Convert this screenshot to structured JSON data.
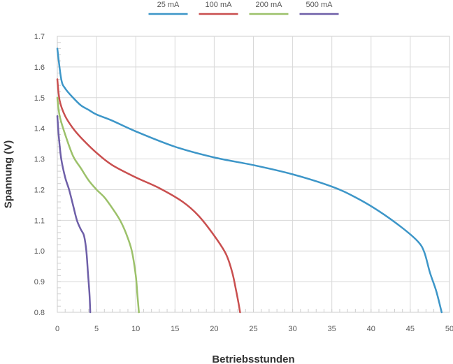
{
  "chart_data": {
    "type": "line",
    "title": "",
    "xlabel": "Betriebsstunden",
    "ylabel": "Spannung (V)",
    "xlim": [
      0,
      50
    ],
    "ylim": [
      0.8,
      1.7
    ],
    "xticks": [
      "0",
      "5",
      "10",
      "15",
      "20",
      "25",
      "30",
      "35",
      "40",
      "45",
      "50"
    ],
    "yticks": [
      "0.8",
      "0.9",
      "1.0",
      "1.1",
      "1.2",
      "1.3",
      "1.4",
      "1.5",
      "1.6",
      "1.7"
    ],
    "grid": true,
    "legend_position": "top-center",
    "series": [
      {
        "name": "25 mA",
        "color": "#3d96c8",
        "x": [
          0,
          0.5,
          1,
          2,
          3,
          4,
          5,
          7,
          10,
          15,
          20,
          25,
          30,
          35,
          38,
          41,
          44,
          46,
          46.8,
          47.5,
          48.3,
          49
        ],
        "y": [
          1.66,
          1.56,
          1.53,
          1.5,
          1.475,
          1.46,
          1.445,
          1.425,
          1.39,
          1.34,
          1.305,
          1.28,
          1.25,
          1.21,
          1.175,
          1.13,
          1.075,
          1.03,
          0.995,
          0.93,
          0.87,
          0.8
        ]
      },
      {
        "name": "100 mA",
        "color": "#c94f4f",
        "x": [
          0,
          0.3,
          1,
          2,
          3,
          5,
          7,
          10,
          13,
          16,
          18,
          20,
          21.5,
          22.3,
          22.8,
          23.1,
          23.3
        ],
        "y": [
          1.56,
          1.49,
          1.44,
          1.4,
          1.37,
          1.32,
          1.28,
          1.24,
          1.205,
          1.16,
          1.115,
          1.05,
          0.99,
          0.93,
          0.87,
          0.83,
          0.8
        ]
      },
      {
        "name": "200 mA",
        "color": "#9cc16a",
        "x": [
          0,
          0.3,
          1,
          2,
          3,
          4,
          5,
          6,
          7,
          8,
          8.8,
          9.5,
          10,
          10.2,
          10.4
        ],
        "y": [
          1.5,
          1.44,
          1.38,
          1.31,
          1.27,
          1.23,
          1.2,
          1.175,
          1.14,
          1.1,
          1.055,
          1.0,
          0.92,
          0.86,
          0.8
        ]
      },
      {
        "name": "500 mA",
        "color": "#6e5fa8",
        "x": [
          0,
          0.2,
          0.5,
          1,
          1.5,
          2,
          2.5,
          3,
          3.4,
          3.7,
          3.9,
          4.1,
          4.2
        ],
        "y": [
          1.44,
          1.37,
          1.3,
          1.24,
          1.2,
          1.15,
          1.1,
          1.07,
          1.05,
          1.0,
          0.93,
          0.86,
          0.8
        ]
      }
    ]
  }
}
